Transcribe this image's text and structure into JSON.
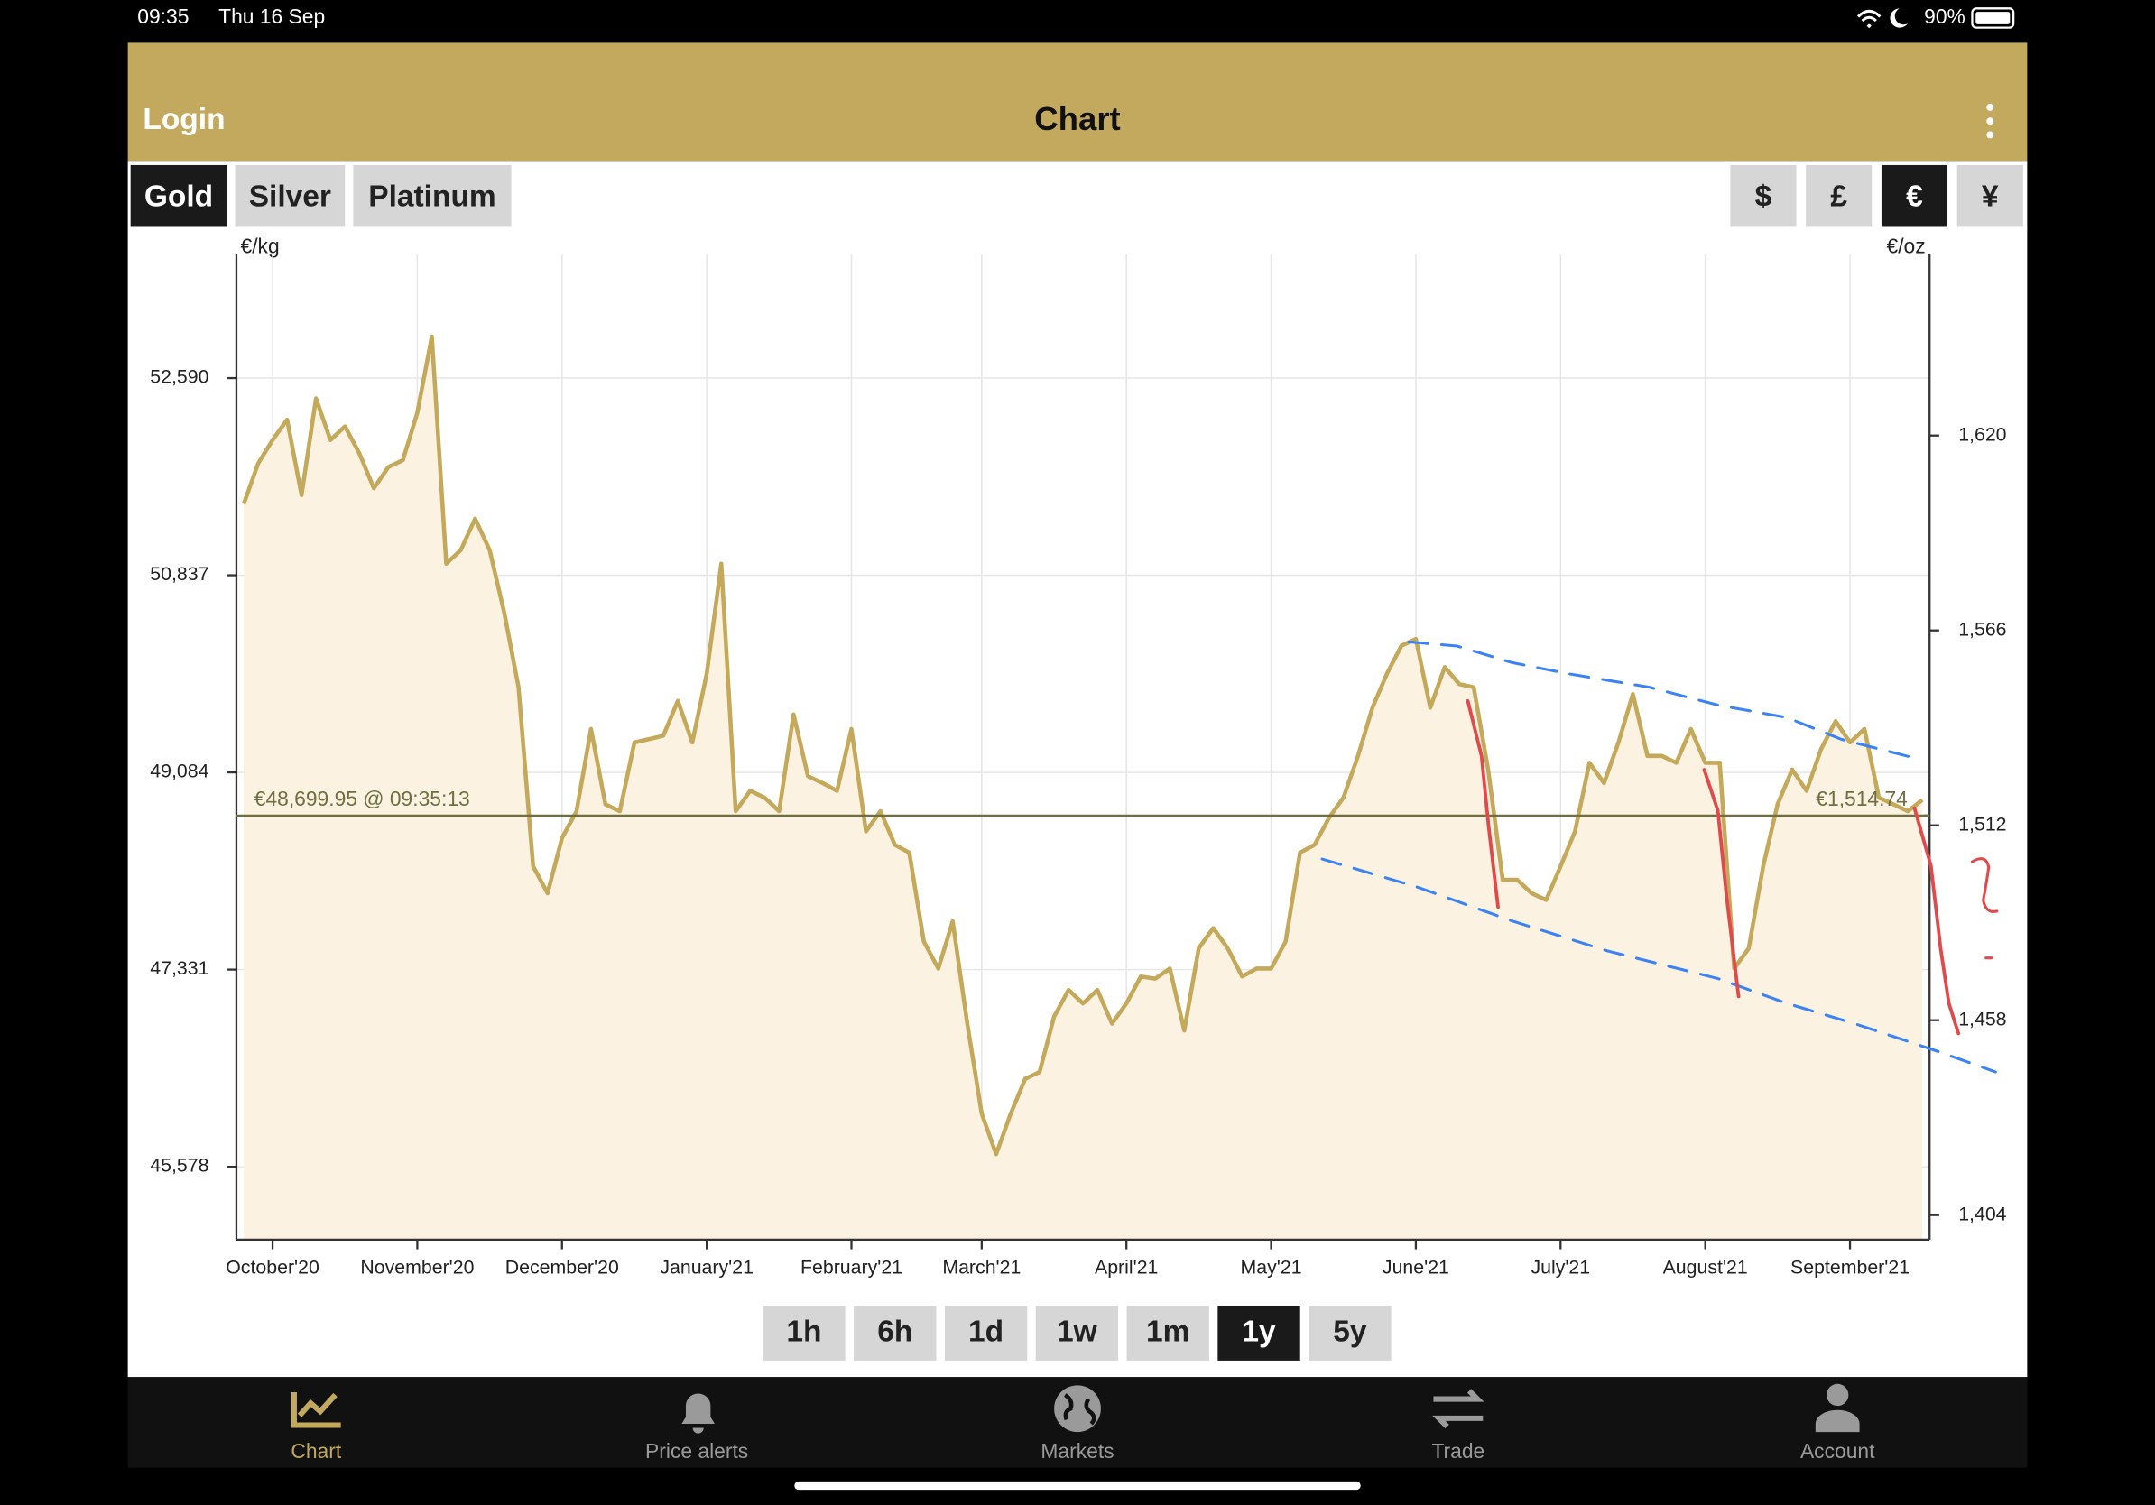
{
  "status_bar": {
    "time": "09:35",
    "date": "Thu 16 Sep",
    "battery": "90%"
  },
  "nav": {
    "login": "Login",
    "title": "Chart"
  },
  "metals": [
    {
      "label": "Gold",
      "active": true
    },
    {
      "label": "Silver"
    },
    {
      "label": "Platinum"
    }
  ],
  "currencies": [
    {
      "label": "$"
    },
    {
      "label": "£"
    },
    {
      "label": "€",
      "active": true
    },
    {
      "label": "¥"
    }
  ],
  "chart_data": {
    "type": "line",
    "y_label": "€/kg",
    "y2_label": "€/oz",
    "color": "#c4a95a",
    "fill": "#fbf2e1",
    "grid": true,
    "categories": [
      null,
      null,
      "October'20",
      null,
      null,
      null,
      null,
      null,
      null,
      null,
      null,
      null,
      "November'20",
      null,
      null,
      null,
      null,
      null,
      null,
      null,
      null,
      null,
      "December'20",
      null,
      null,
      null,
      null,
      null,
      null,
      null,
      null,
      null,
      "January'21",
      null,
      null,
      null,
      null,
      null,
      null,
      null,
      null,
      null,
      "February'21",
      null,
      null,
      null,
      null,
      null,
      null,
      null,
      null,
      "March'21",
      null,
      null,
      null,
      null,
      null,
      null,
      null,
      null,
      null,
      "April'21",
      null,
      null,
      null,
      null,
      null,
      null,
      null,
      null,
      null,
      "May'21",
      null,
      null,
      null,
      null,
      null,
      null,
      null,
      null,
      null,
      "June'21",
      null,
      null,
      null,
      null,
      null,
      null,
      null,
      null,
      null,
      "July'21",
      null,
      null,
      null,
      null,
      null,
      null,
      null,
      null,
      null,
      "August'21",
      null,
      null,
      null,
      null,
      null,
      null,
      null,
      null,
      null,
      "September'21",
      null,
      null,
      null,
      null,
      null
    ],
    "values": [
      51470,
      51830,
      52040,
      52220,
      51550,
      52410,
      52040,
      52160,
      51920,
      51610,
      51800,
      51860,
      52280,
      52960,
      50940,
      51060,
      51340,
      51060,
      50510,
      49840,
      48250,
      48010,
      48500,
      48740,
      49470,
      48800,
      48740,
      49350,
      49380,
      49410,
      49720,
      49350,
      49960,
      50940,
      48740,
      48920,
      48860,
      48740,
      49600,
      49050,
      48990,
      48920,
      49470,
      48560,
      48740,
      48440,
      48370,
      47580,
      47340,
      47760,
      46850,
      46050,
      45690,
      46050,
      46360,
      46420,
      46910,
      47150,
      47030,
      47150,
      46850,
      47030,
      47270,
      47250,
      47340,
      46790,
      47520,
      47700,
      47520,
      47270,
      47340,
      47340,
      47580,
      48370,
      48440,
      48680,
      48860,
      49230,
      49660,
      49960,
      50210,
      50270,
      49660,
      50020,
      49870,
      49840,
      49110,
      48130,
      48130,
      48010,
      47950,
      48250,
      48560,
      49170,
      48990,
      49350,
      49780,
      49230,
      49230,
      49170,
      49470,
      49170,
      49170,
      47340,
      47520,
      48250,
      48800,
      49110,
      48920,
      49290,
      49540,
      49350,
      49470,
      48860,
      48800,
      48740,
      48840
    ],
    "ylim": [
      44930,
      53690
    ],
    "yticks": [
      {
        "value": 45578,
        "label": "45,578"
      },
      {
        "value": 47331,
        "label": "47,331"
      },
      {
        "value": 49084,
        "label": "49,084"
      },
      {
        "value": 50837,
        "label": "50,837"
      },
      {
        "value": 52590,
        "label": "52,590"
      }
    ],
    "y2lim": [
      1397.2,
      1670.2
    ],
    "y2ticks": [
      {
        "value": 1404,
        "label": "1,404"
      },
      {
        "value": 1458,
        "label": "1,458"
      },
      {
        "value": 1512,
        "label": "1,512"
      },
      {
        "value": 1566,
        "label": "1,566"
      },
      {
        "value": 1620,
        "label": "1,620"
      }
    ],
    "price_line": {
      "value": 48699.95,
      "label": "€48,699.95 @ 09:35:13"
    },
    "price_line_y2": {
      "value": 1514.74,
      "label": "€1,514.74"
    }
  },
  "ranges": [
    {
      "label": "1h"
    },
    {
      "label": "6h"
    },
    {
      "label": "1d"
    },
    {
      "label": "1w"
    },
    {
      "label": "1m"
    },
    {
      "label": "1y",
      "active": true
    },
    {
      "label": "5y"
    }
  ],
  "tabs": [
    {
      "label": "Chart",
      "active": true
    },
    {
      "label": "Price alerts"
    },
    {
      "label": "Markets"
    },
    {
      "label": "Trade"
    },
    {
      "label": "Account"
    }
  ]
}
